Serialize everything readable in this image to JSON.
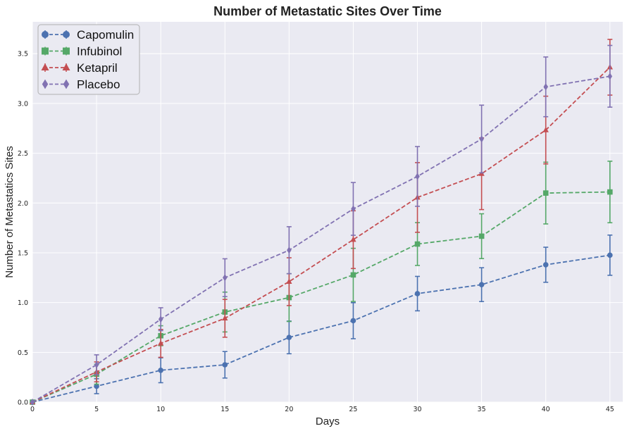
{
  "chart_data": {
    "type": "line",
    "title": "Number of Metastatic Sites Over Time",
    "xlabel": "Days",
    "ylabel": "Number of Metastatics Sites",
    "xlim": [
      0,
      46
    ],
    "ylim": [
      0,
      3.82
    ],
    "xticks": [
      0,
      5,
      10,
      15,
      20,
      25,
      30,
      35,
      40,
      45
    ],
    "yticks": [
      0.0,
      0.5,
      1.0,
      1.5,
      2.0,
      2.5,
      3.0,
      3.5
    ],
    "ytick_labels": [
      "0.0",
      "0.5",
      "1.0",
      "1.5",
      "2.0",
      "2.5",
      "3.0",
      "3.5"
    ],
    "grid": true,
    "legend_position": "top-left",
    "x": [
      0,
      5,
      10,
      15,
      20,
      25,
      30,
      35,
      40,
      45
    ],
    "series": [
      {
        "name": "Capomulin",
        "color": "#4c72b0",
        "marker": "circle",
        "values": [
          0,
          0.16,
          0.32,
          0.375,
          0.65,
          0.818,
          1.09,
          1.18,
          1.38,
          1.476
        ],
        "errors": [
          0,
          0.075,
          0.125,
          0.133,
          0.164,
          0.181,
          0.173,
          0.17,
          0.176,
          0.202
        ]
      },
      {
        "name": "Infubinol",
        "color": "#55a868",
        "marker": "square",
        "values": [
          0,
          0.28,
          0.667,
          0.905,
          1.05,
          1.278,
          1.588,
          1.667,
          2.1,
          2.111
        ],
        "errors": [
          0,
          0.1,
          0.1,
          0.2,
          0.24,
          0.267,
          0.215,
          0.225,
          0.31,
          0.309
        ]
      },
      {
        "name": "Ketapril",
        "color": "#c44e52",
        "marker": "triangle",
        "values": [
          0,
          0.304,
          0.59,
          0.842,
          1.21,
          1.632,
          2.056,
          2.294,
          2.733,
          3.364
        ],
        "errors": [
          0,
          0.1,
          0.14,
          0.19,
          0.24,
          0.29,
          0.35,
          0.36,
          0.34,
          0.28
        ]
      },
      {
        "name": "Placebo",
        "color": "#8172b2",
        "marker": "diamond",
        "values": [
          0,
          0.375,
          0.833,
          1.25,
          1.526,
          1.941,
          2.267,
          2.643,
          3.167,
          3.273
        ],
        "errors": [
          0,
          0.1,
          0.115,
          0.19,
          0.236,
          0.265,
          0.3,
          0.34,
          0.3,
          0.31
        ]
      }
    ]
  }
}
